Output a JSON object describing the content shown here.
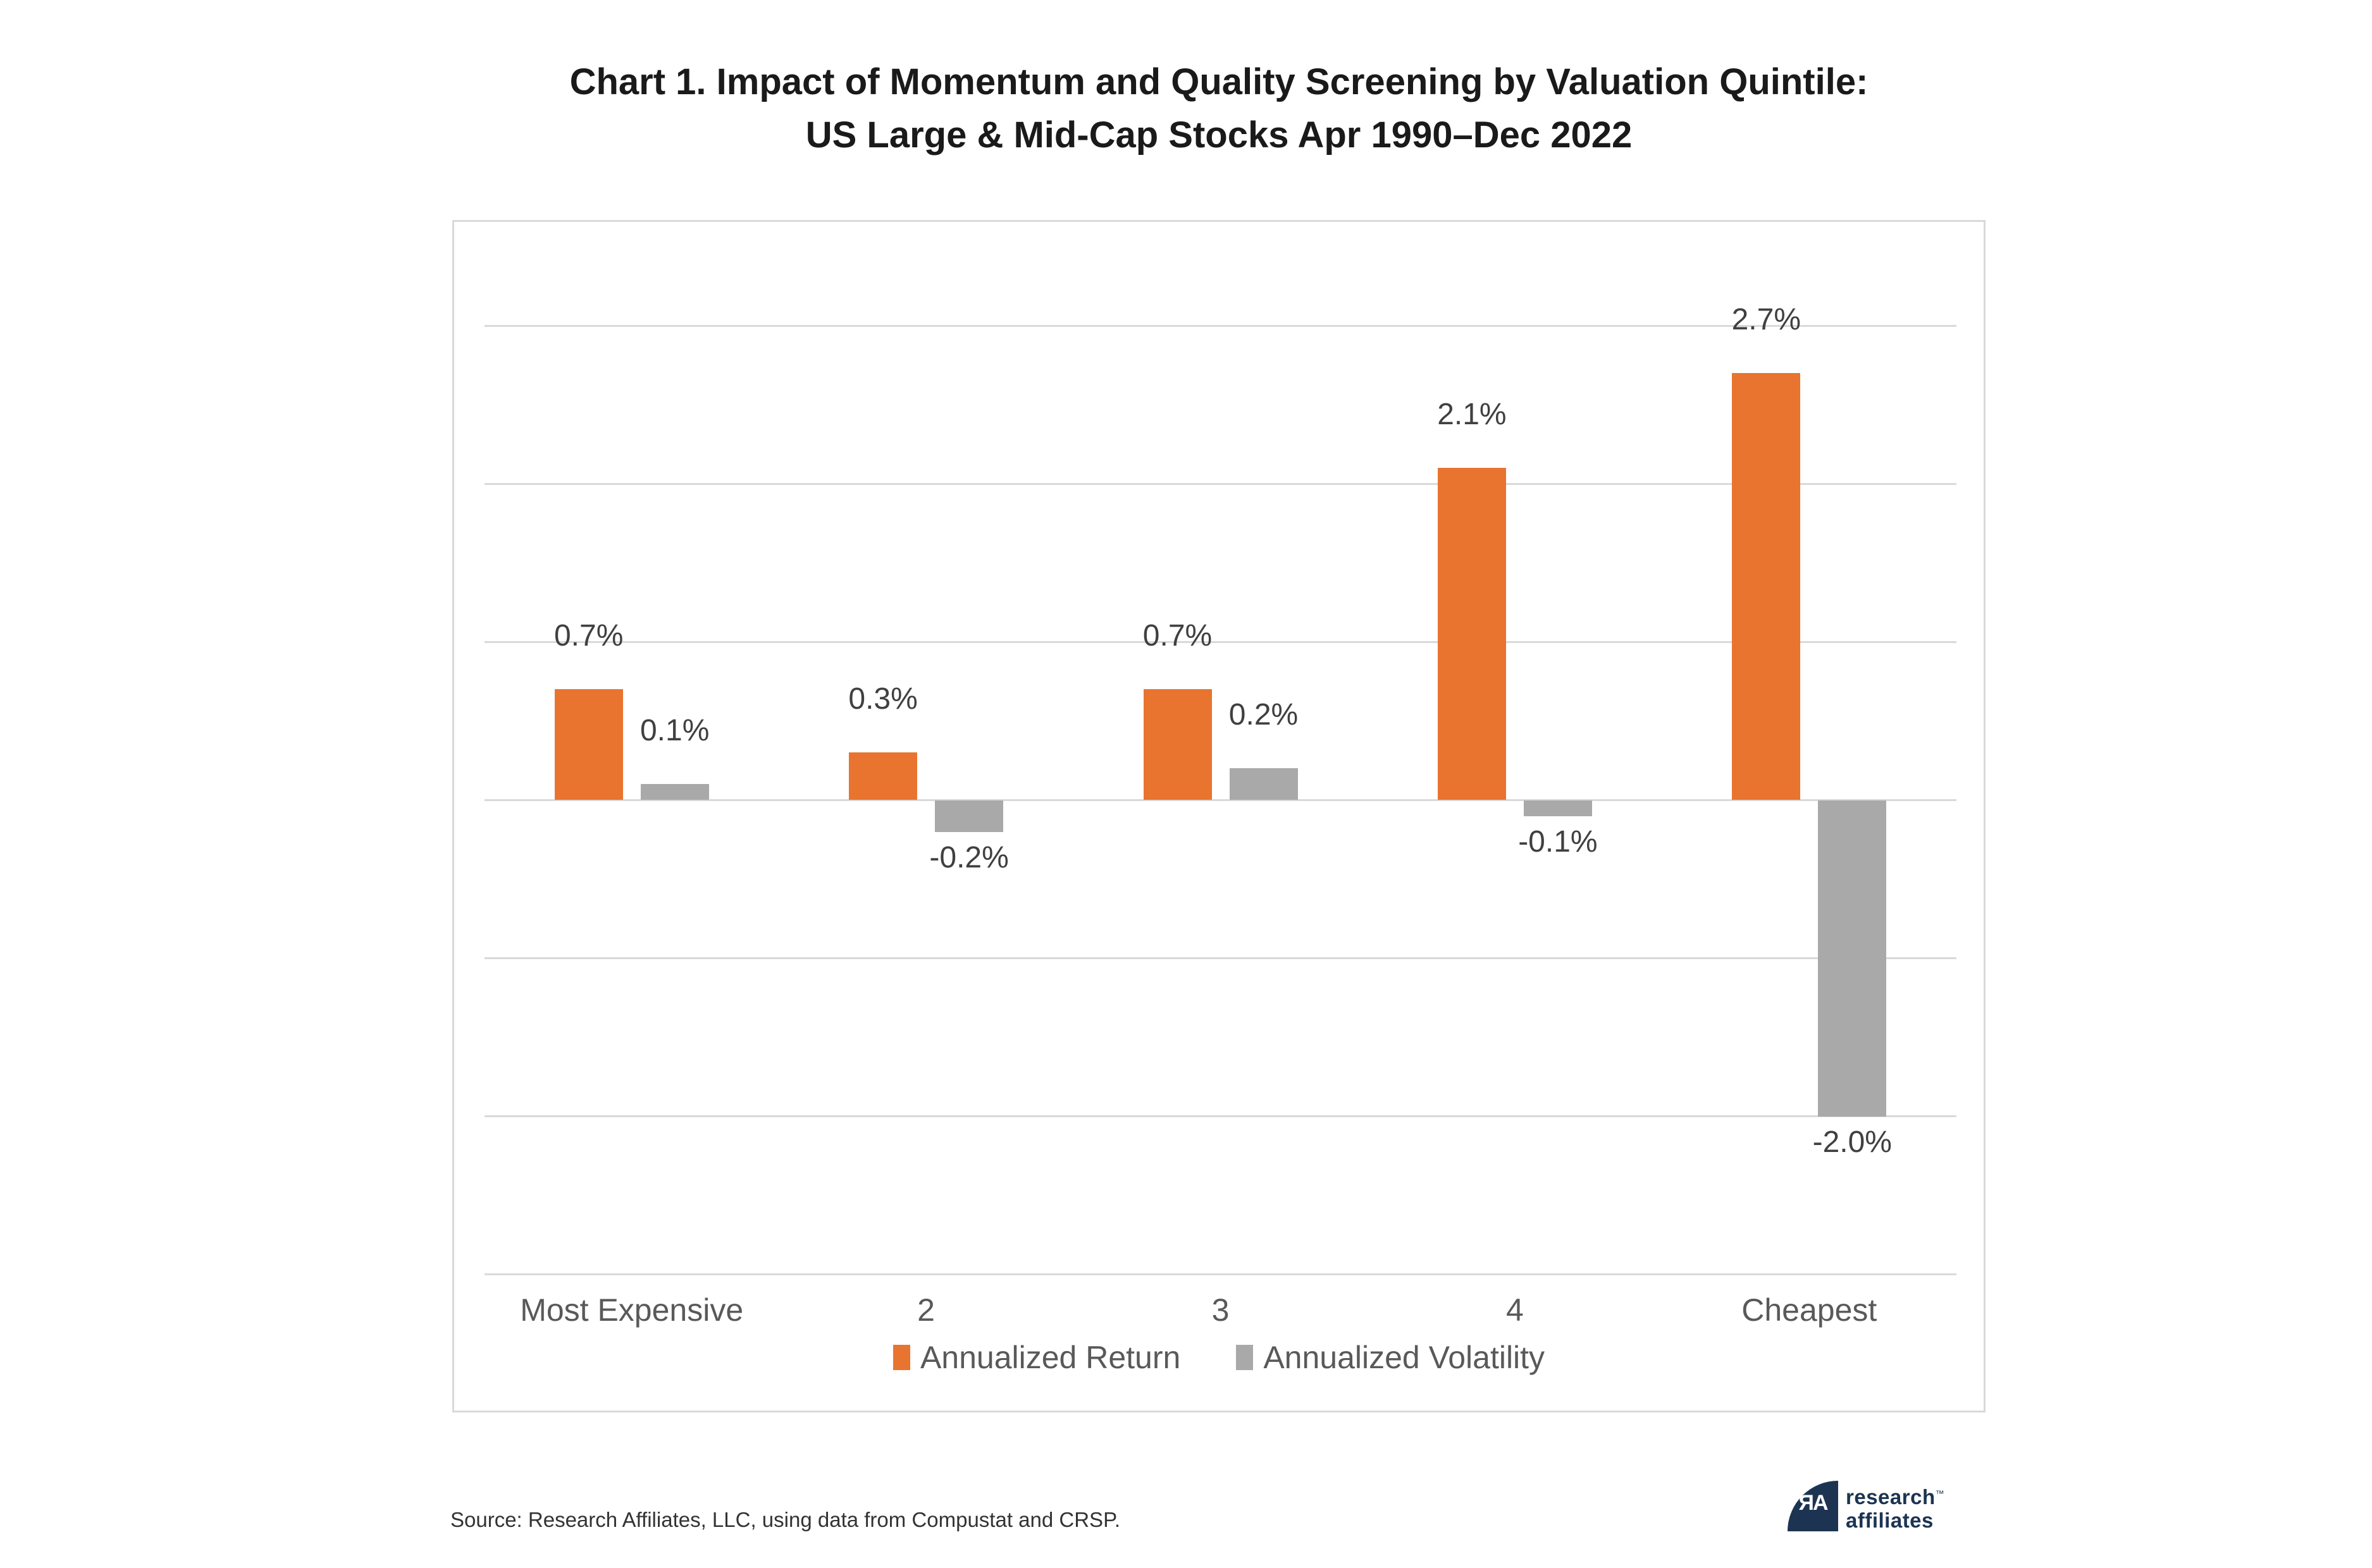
{
  "title": {
    "line1": "Chart 1. Impact of Momentum and Quality Screening by Valuation Quintile:",
    "line2": "US Large & Mid-Cap Stocks Apr 1990–Dec 2022"
  },
  "chart_data": {
    "type": "bar",
    "title": "Chart 1. Impact of Momentum and Quality Screening by Valuation Quintile: US Large & Mid-Cap Stocks Apr 1990–Dec 2022",
    "categories": [
      "Most Expensive",
      "2",
      "3",
      "4",
      "Cheapest"
    ],
    "series": [
      {
        "name": "Annualized Return",
        "color": "#E8742F",
        "values": [
          0.7,
          0.3,
          0.7,
          2.1,
          2.7
        ],
        "labels": [
          "0.7%",
          "0.3%",
          "0.7%",
          "2.1%",
          "2.7%"
        ]
      },
      {
        "name": "Annualized Volatility",
        "color": "#A9A9A9",
        "values": [
          0.1,
          -0.2,
          0.2,
          -0.1,
          -2.0
        ],
        "labels": [
          "0.1%",
          "-0.2%",
          "0.2%",
          "-0.1%",
          "-2.0%"
        ]
      }
    ],
    "xlabel": "",
    "ylabel": "",
    "ylim": [
      -3.9,
      3.65
    ],
    "gridline_values": [
      3,
      2,
      1,
      0,
      -1,
      -2,
      -3
    ],
    "gridline_interval": 1,
    "grid": true,
    "value_axis_labels_visible": false,
    "legend_position": "bottom"
  },
  "legend": {
    "items": [
      "Annualized Return",
      "Annualized Volatility"
    ]
  },
  "source": {
    "text": "Source: Research Affiliates, LLC, using data from Compustat and CRSP."
  },
  "logo": {
    "monogram": "ЯA",
    "line1": "research",
    "line2": "affiliates",
    "trademark": "™"
  },
  "colors": {
    "return_orange": "#E8742F",
    "volatility_gray": "#A9A9A9",
    "logo_navy": "#1C3452",
    "gridline": "#D9D9D9",
    "value_label": "#404040",
    "category_label": "#595959",
    "title_text": "#1A1A1A",
    "source_text": "#333333"
  }
}
